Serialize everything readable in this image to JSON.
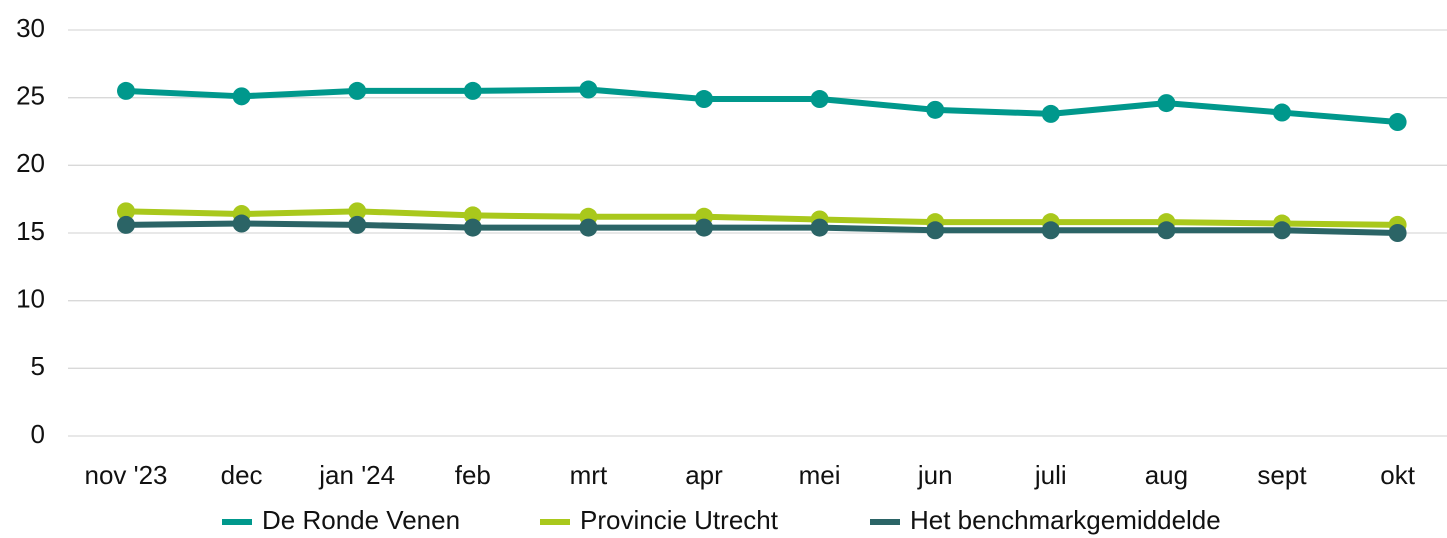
{
  "chart_data": {
    "type": "line",
    "categories": [
      "nov  '23",
      "dec",
      "jan '24",
      "feb",
      "mrt",
      "apr",
      "mei",
      "jun",
      "juli",
      "aug",
      "sept",
      "okt"
    ],
    "series": [
      {
        "name": "De Ronde Venen",
        "color": "#00988c",
        "values": [
          25.5,
          25.1,
          25.5,
          25.5,
          25.6,
          24.9,
          24.9,
          24.1,
          23.8,
          24.6,
          23.9,
          23.2
        ]
      },
      {
        "name": "Provincie Utrecht",
        "color": "#a9c81c",
        "values": [
          16.6,
          16.4,
          16.6,
          16.3,
          16.2,
          16.2,
          16.0,
          15.8,
          15.8,
          15.8,
          15.7,
          15.6
        ]
      },
      {
        "name": "Het benchmarkgemiddelde",
        "color": "#2b6466",
        "values": [
          15.6,
          15.7,
          15.6,
          15.4,
          15.4,
          15.4,
          15.4,
          15.2,
          15.2,
          15.2,
          15.2,
          15.0
        ]
      }
    ],
    "ylim": [
      0,
      30
    ],
    "yticks": [
      0,
      5,
      10,
      15,
      20,
      25,
      30
    ],
    "grid": true,
    "legend": "bottom"
  }
}
